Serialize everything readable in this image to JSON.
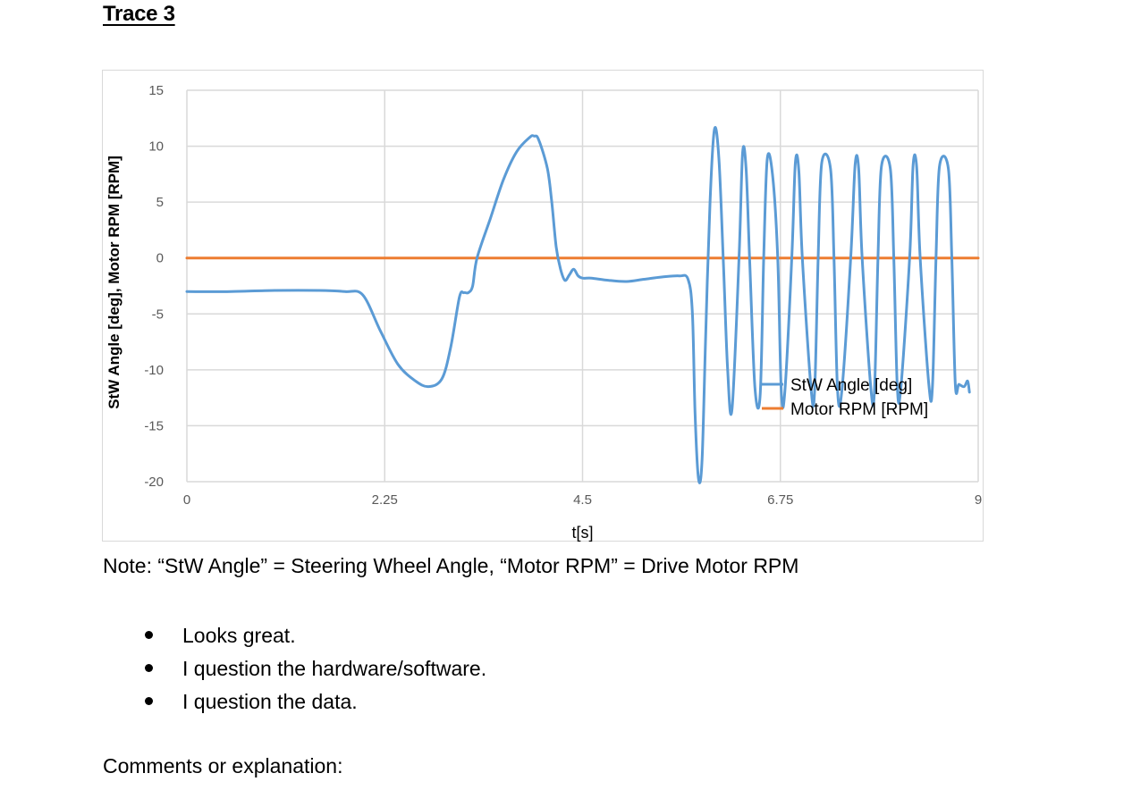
{
  "document": {
    "heading": "Trace 3",
    "note": "Note: “StW Angle” = Steering Wheel Angle, “Motor RPM” = Drive Motor RPM",
    "options": [
      "Looks great.",
      "I question the hardware/software.",
      "I question the data."
    ],
    "comments_label": "Comments or explanation:"
  },
  "chart_data": {
    "type": "line",
    "xlabel": "t[s]",
    "ylabel": "StW Angle [deg], Motor RPM [RPM]",
    "xlim": [
      0,
      9
    ],
    "ylim": [
      -20,
      15
    ],
    "xticks": [
      "0",
      "2.25",
      "4.5",
      "6.75",
      "9"
    ],
    "yticks": [
      "15",
      "10",
      "5",
      "0",
      "-5",
      "-10",
      "-15",
      "-20"
    ],
    "grid": true,
    "legend_position": "lower-right",
    "series": [
      {
        "name": "StW Angle [deg]",
        "color": "#5b9bd5",
        "x": [
          0,
          0.5,
          1.0,
          1.5,
          1.8,
          2.0,
          2.2,
          2.4,
          2.6,
          2.75,
          2.9,
          3.0,
          3.1,
          3.15,
          3.2,
          3.25,
          3.3,
          3.45,
          3.6,
          3.75,
          3.9,
          3.95,
          4.0,
          4.1,
          4.15,
          4.2,
          4.25,
          4.3,
          4.35,
          4.4,
          4.45,
          4.5,
          4.6,
          4.8,
          5.0,
          5.2,
          5.4,
          5.6,
          5.7,
          5.75,
          5.78,
          5.82,
          5.86,
          5.9,
          5.95,
          6.0,
          6.05,
          6.1,
          6.15,
          6.2,
          6.28,
          6.32,
          6.36,
          6.4,
          6.46,
          6.52,
          6.56,
          6.6,
          6.66,
          6.72,
          6.76,
          6.8,
          6.88,
          6.92,
          6.96,
          7.0,
          7.1,
          7.14,
          7.18,
          7.22,
          7.32,
          7.36,
          7.4,
          7.45,
          7.55,
          7.6,
          7.64,
          7.68,
          7.78,
          7.82,
          7.86,
          7.9,
          8.0,
          8.04,
          8.08,
          8.12,
          8.22,
          8.26,
          8.3,
          8.34,
          8.44,
          8.48,
          8.52,
          8.56,
          8.66,
          8.7,
          8.74,
          8.78,
          8.84,
          8.88,
          8.9
        ],
        "values": [
          -3.0,
          -3.0,
          -2.9,
          -2.9,
          -3.0,
          -3.3,
          -6.5,
          -9.5,
          -11.0,
          -11.5,
          -10.8,
          -8.0,
          -3.5,
          -3.1,
          -3.1,
          -2.5,
          0,
          3.5,
          7.0,
          9.5,
          10.8,
          10.9,
          10.6,
          8.0,
          5.0,
          1.0,
          -1.0,
          -2.0,
          -1.5,
          -1.0,
          -1.6,
          -1.8,
          -1.8,
          -2.0,
          -2.1,
          -1.9,
          -1.7,
          -1.6,
          -1.9,
          -5.0,
          -14.0,
          -19.8,
          -18.0,
          -7.0,
          5.0,
          11.5,
          9.0,
          0,
          -10.0,
          -13.5,
          0,
          9.4,
          8.0,
          0,
          -11.5,
          -12.3,
          0,
          8.8,
          7.5,
          0,
          -11.8,
          -12.0,
          0,
          8.5,
          7.8,
          0,
          -11.8,
          -11.8,
          0,
          8.5,
          8.0,
          0,
          -11.8,
          -11.8,
          0,
          8.3,
          8.0,
          0,
          -11.7,
          -11.8,
          0,
          8.2,
          8.0,
          0,
          -11.5,
          -11.6,
          0,
          8.3,
          8.1,
          0,
          -11.4,
          -11.4,
          0,
          8.2,
          8.0,
          0,
          -11.3,
          -11.3,
          -11.5,
          -11.0,
          -12.0
        ]
      },
      {
        "name": "Motor RPM [RPM]",
        "color": "#ed7d31",
        "x": [
          0,
          9
        ],
        "values": [
          0,
          0
        ]
      }
    ]
  }
}
